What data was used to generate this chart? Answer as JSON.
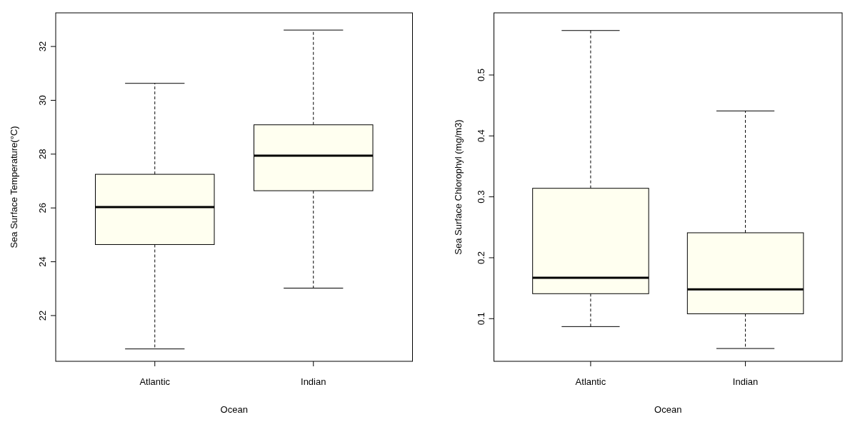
{
  "chart_data": [
    {
      "type": "box",
      "xlabel": "Ocean",
      "ylabel": "Sea Surface Temperature(°C)",
      "categories": [
        "Atlantic",
        "Indian"
      ],
      "color": "#fffff0",
      "ylim": [
        20.3,
        33.25
      ],
      "yticks": [
        22,
        24,
        26,
        28,
        30,
        32
      ],
      "boxes": [
        {
          "low": 20.76,
          "q1": 24.64,
          "median": 26.03,
          "q3": 27.25,
          "high": 30.63
        },
        {
          "low": 23.02,
          "q1": 26.64,
          "median": 27.94,
          "q3": 29.09,
          "high": 32.61
        }
      ]
    },
    {
      "type": "box",
      "xlabel": "Ocean",
      "ylabel": "Sea Surface Chlorophyl (mg/m3)",
      "categories": [
        "Atlantic",
        "Indian"
      ],
      "color": "#fffff0",
      "ylim": [
        0.03,
        0.602
      ],
      "yticks": [
        0.1,
        0.2,
        0.3,
        0.4,
        0.5
      ],
      "boxes": [
        {
          "low": 0.087,
          "q1": 0.141,
          "median": 0.167,
          "q3": 0.314,
          "high": 0.573
        },
        {
          "low": 0.051,
          "q1": 0.108,
          "median": 0.148,
          "q3": 0.241,
          "high": 0.441
        }
      ]
    }
  ]
}
